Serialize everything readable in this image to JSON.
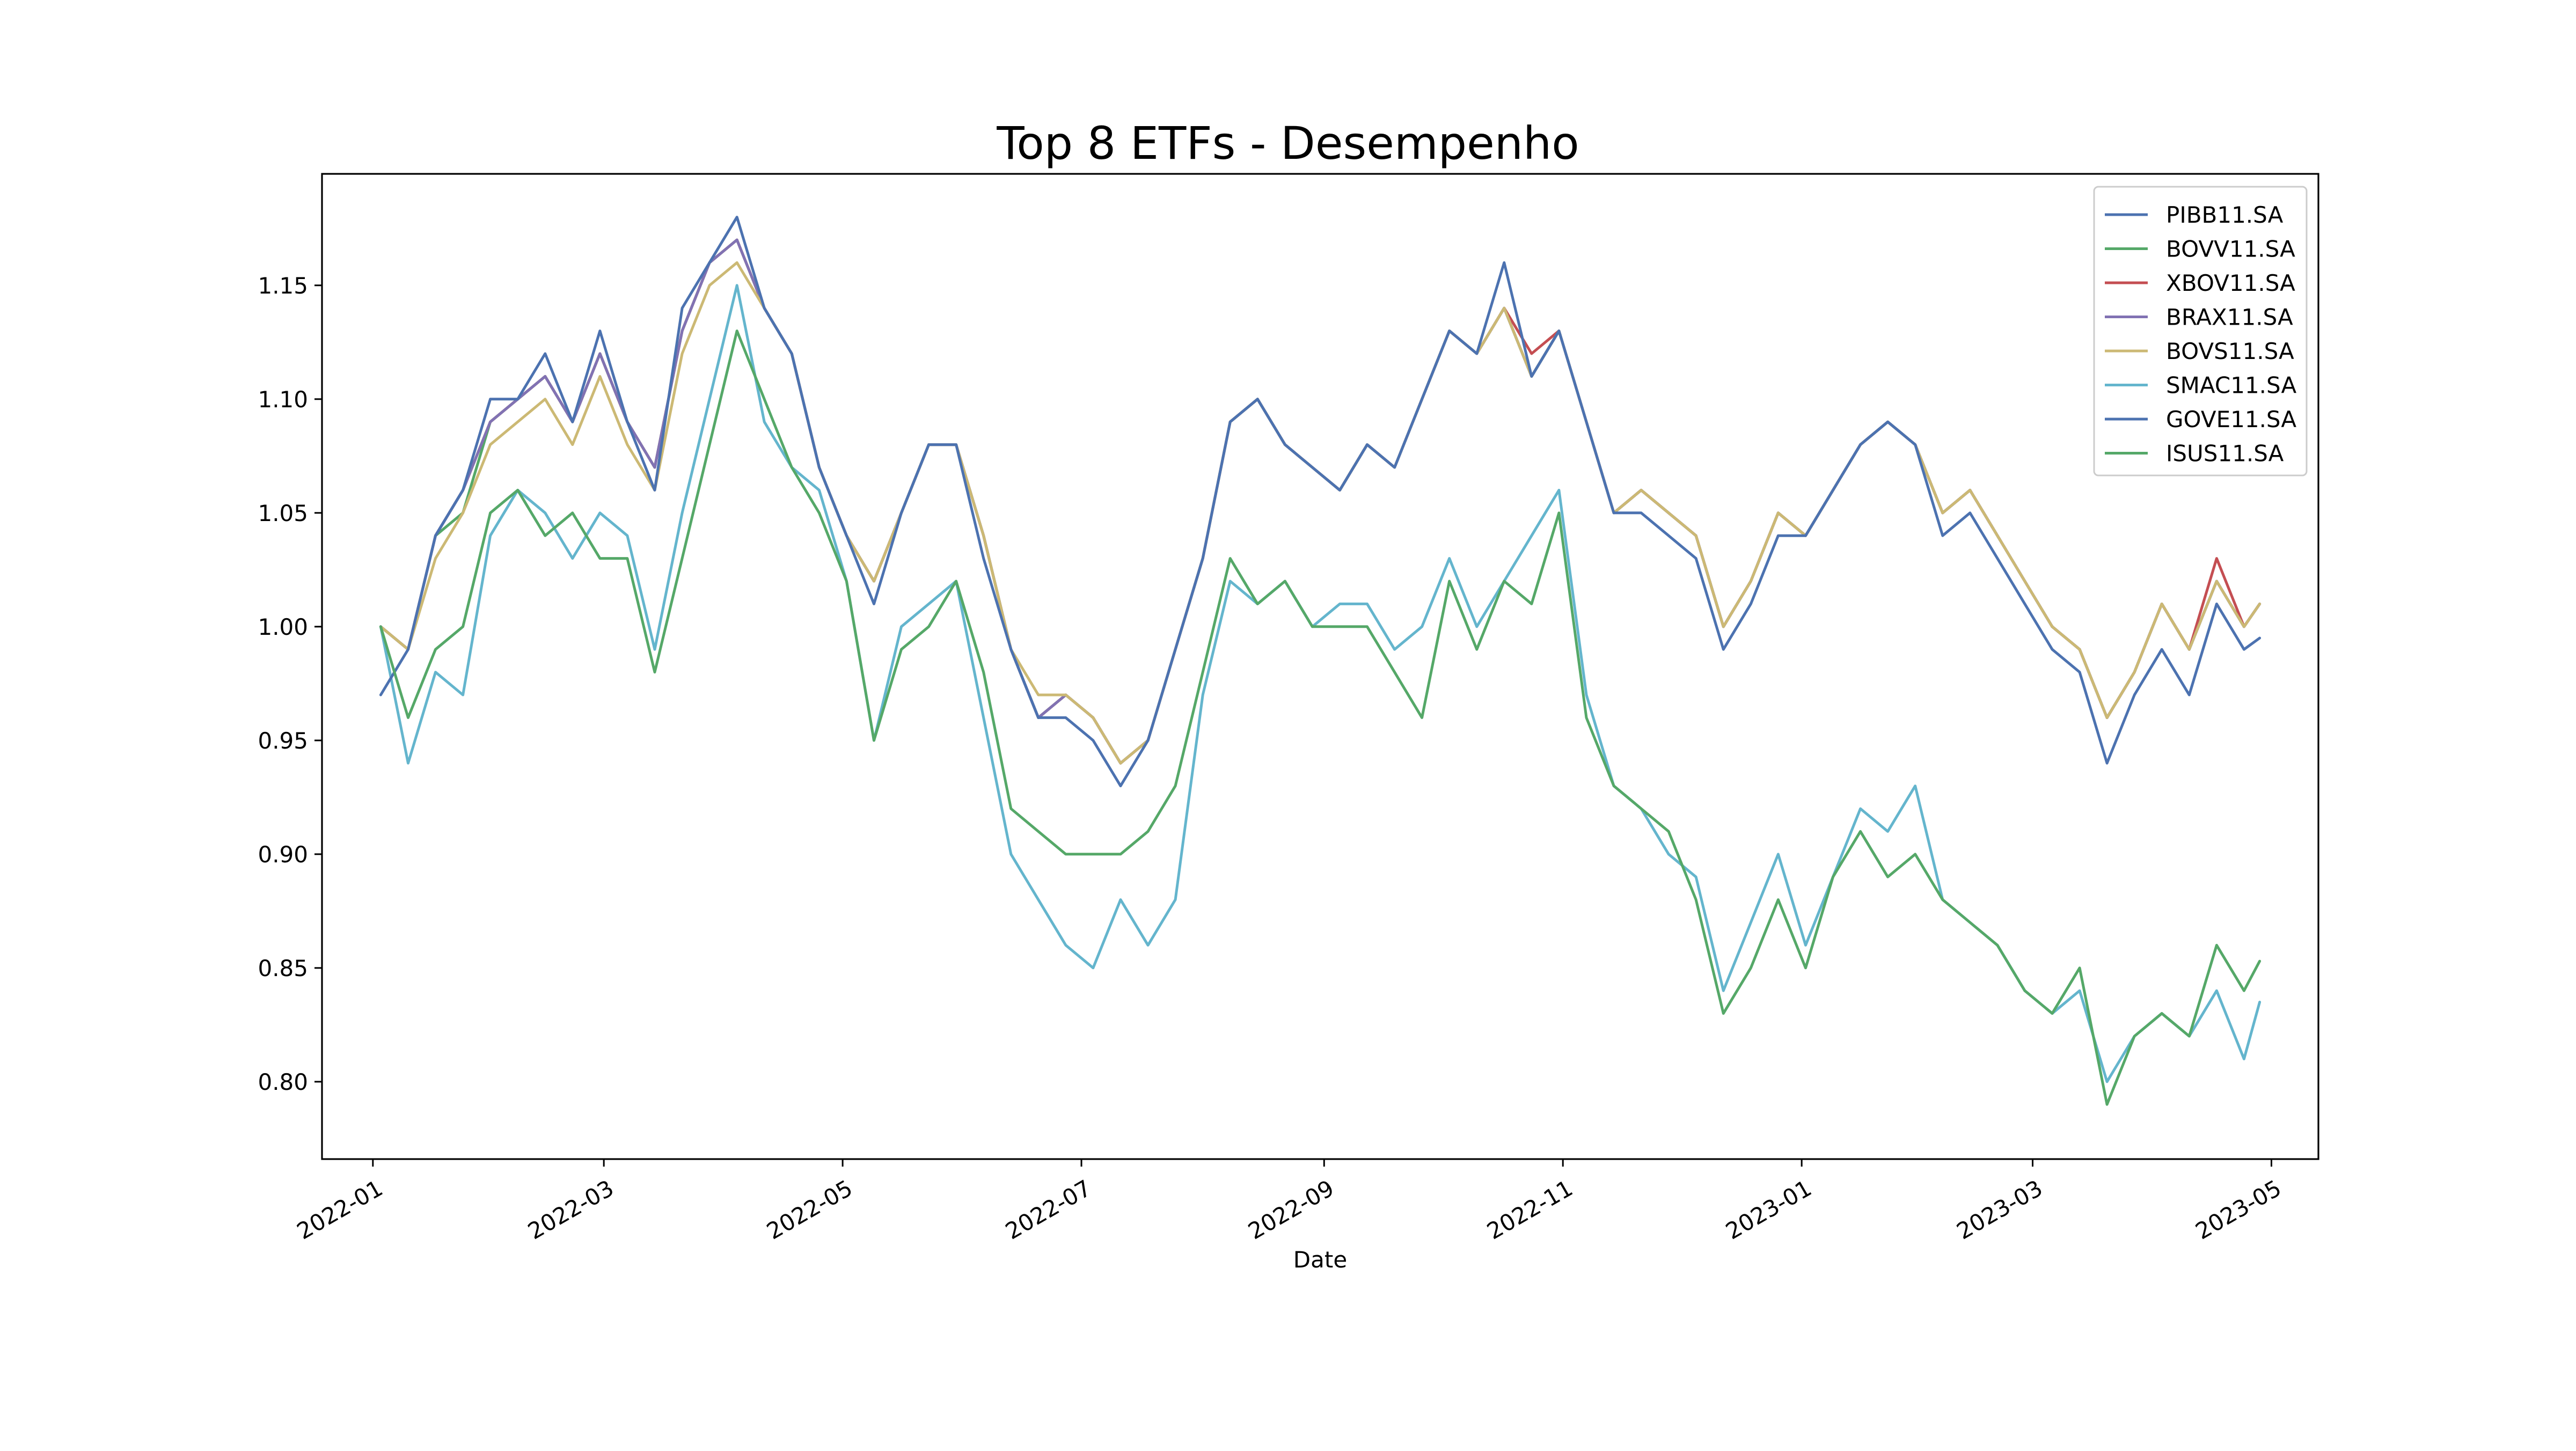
{
  "chart_data": {
    "type": "line",
    "title": "Top 8 ETFs - Desempenho",
    "xlabel": "Date",
    "ylabel": "",
    "xlim": [
      "2021-12-19",
      "2023-05-13"
    ],
    "ylim": [
      0.766,
      1.199
    ],
    "x_ticks": [
      "2022-01-01",
      "2022-03-01",
      "2022-05-01",
      "2022-07-01",
      "2022-09-01",
      "2022-11-01",
      "2023-01-01",
      "2023-03-01",
      "2023-05-01"
    ],
    "x_tick_labels": [
      "2022-01",
      "2022-03",
      "2022-05",
      "2022-07",
      "2022-09",
      "2022-11",
      "2023-01",
      "2023-03",
      "2023-05"
    ],
    "y_ticks": [
      0.8,
      0.85,
      0.9,
      0.95,
      1.0,
      1.05,
      1.1,
      1.15
    ],
    "y_tick_labels": [
      "0.80",
      "0.85",
      "0.90",
      "0.95",
      "1.00",
      "1.05",
      "1.10",
      "1.15"
    ],
    "grid": false,
    "legend_position": "top-right",
    "x": [
      "2022-01-03",
      "2022-01-10",
      "2022-01-17",
      "2022-01-24",
      "2022-01-31",
      "2022-02-07",
      "2022-02-14",
      "2022-02-21",
      "2022-02-28",
      "2022-03-07",
      "2022-03-14",
      "2022-03-21",
      "2022-03-28",
      "2022-04-04",
      "2022-04-11",
      "2022-04-18",
      "2022-04-25",
      "2022-05-02",
      "2022-05-09",
      "2022-05-16",
      "2022-05-23",
      "2022-05-30",
      "2022-06-06",
      "2022-06-13",
      "2022-06-20",
      "2022-06-27",
      "2022-07-04",
      "2022-07-11",
      "2022-07-18",
      "2022-07-25",
      "2022-08-01",
      "2022-08-08",
      "2022-08-15",
      "2022-08-22",
      "2022-08-29",
      "2022-09-05",
      "2022-09-12",
      "2022-09-19",
      "2022-09-26",
      "2022-10-03",
      "2022-10-10",
      "2022-10-17",
      "2022-10-24",
      "2022-10-31",
      "2022-11-07",
      "2022-11-14",
      "2022-11-21",
      "2022-11-28",
      "2022-12-05",
      "2022-12-12",
      "2022-12-19",
      "2022-12-26",
      "2023-01-02",
      "2023-01-09",
      "2023-01-16",
      "2023-01-23",
      "2023-01-30",
      "2023-02-06",
      "2023-02-13",
      "2023-02-20",
      "2023-02-27",
      "2023-03-06",
      "2023-03-13",
      "2023-03-20",
      "2023-03-27",
      "2023-04-03",
      "2023-04-10",
      "2023-04-17",
      "2023-04-24",
      "2023-04-28"
    ],
    "series": [
      {
        "name": "PIBB11.SA",
        "color": "#4c72b0",
        "values": [
          1.0,
          0.99,
          1.04,
          1.06,
          1.09,
          1.1,
          1.11,
          1.09,
          1.12,
          1.09,
          1.07,
          1.13,
          1.16,
          1.17,
          1.14,
          1.12,
          1.07,
          1.04,
          1.02,
          1.05,
          1.08,
          1.08,
          1.04,
          0.99,
          0.96,
          0.97,
          0.96,
          0.94,
          0.95,
          0.99,
          1.03,
          1.09,
          1.1,
          1.08,
          1.07,
          1.06,
          1.08,
          1.07,
          1.1,
          1.13,
          1.12,
          1.14,
          1.11,
          1.13,
          1.09,
          1.05,
          1.06,
          1.05,
          1.04,
          1.0,
          1.02,
          1.05,
          1.04,
          1.06,
          1.08,
          1.09,
          1.08,
          1.05,
          1.06,
          1.04,
          1.02,
          1.0,
          0.99,
          0.96,
          0.98,
          1.01,
          0.99,
          1.02,
          1.0,
          1.01
        ]
      },
      {
        "name": "BOVV11.SA",
        "color": "#55a868",
        "values": [
          1.0,
          0.99,
          1.04,
          1.05,
          1.09,
          1.1,
          1.11,
          1.09,
          1.12,
          1.09,
          1.07,
          1.13,
          1.16,
          1.17,
          1.14,
          1.12,
          1.07,
          1.04,
          1.02,
          1.05,
          1.08,
          1.08,
          1.04,
          0.99,
          0.96,
          0.97,
          0.96,
          0.94,
          0.95,
          0.99,
          1.03,
          1.09,
          1.1,
          1.08,
          1.07,
          1.06,
          1.08,
          1.07,
          1.1,
          1.13,
          1.12,
          1.14,
          1.11,
          1.13,
          1.09,
          1.05,
          1.06,
          1.05,
          1.04,
          1.0,
          1.02,
          1.05,
          1.04,
          1.06,
          1.08,
          1.09,
          1.08,
          1.05,
          1.06,
          1.04,
          1.02,
          1.0,
          0.99,
          0.96,
          0.98,
          1.01,
          0.99,
          1.02,
          1.0,
          1.01
        ]
      },
      {
        "name": "XBOV11.SA",
        "color": "#c44e52",
        "values": [
          1.0,
          0.99,
          1.04,
          1.06,
          1.09,
          1.1,
          1.11,
          1.09,
          1.12,
          1.09,
          1.07,
          1.13,
          1.16,
          1.17,
          1.14,
          1.12,
          1.07,
          1.04,
          1.02,
          1.05,
          1.08,
          1.08,
          1.04,
          0.99,
          0.96,
          0.97,
          0.96,
          0.94,
          0.95,
          0.99,
          1.03,
          1.09,
          1.1,
          1.08,
          1.07,
          1.06,
          1.08,
          1.07,
          1.1,
          1.13,
          1.12,
          1.14,
          1.12,
          1.13,
          1.09,
          1.05,
          1.06,
          1.05,
          1.04,
          1.0,
          1.02,
          1.05,
          1.04,
          1.06,
          1.08,
          1.09,
          1.08,
          1.05,
          1.06,
          1.04,
          1.02,
          1.0,
          0.99,
          0.96,
          0.98,
          1.01,
          0.99,
          1.03,
          1.0,
          1.01
        ]
      },
      {
        "name": "BRAX11.SA",
        "color": "#8172b3",
        "values": [
          1.0,
          0.99,
          1.04,
          1.06,
          1.09,
          1.1,
          1.11,
          1.09,
          1.12,
          1.09,
          1.07,
          1.13,
          1.16,
          1.17,
          1.14,
          1.12,
          1.07,
          1.04,
          1.02,
          1.05,
          1.08,
          1.08,
          1.04,
          0.99,
          0.96,
          0.97,
          0.96,
          0.94,
          0.95,
          0.99,
          1.03,
          1.09,
          1.1,
          1.08,
          1.07,
          1.06,
          1.08,
          1.07,
          1.1,
          1.13,
          1.12,
          1.14,
          1.11,
          1.13,
          1.09,
          1.05,
          1.06,
          1.05,
          1.04,
          1.0,
          1.02,
          1.05,
          1.04,
          1.06,
          1.08,
          1.09,
          1.08,
          1.05,
          1.06,
          1.04,
          1.02,
          1.0,
          0.99,
          0.96,
          0.98,
          1.01,
          0.99,
          1.02,
          1.0,
          1.01
        ]
      },
      {
        "name": "BOVS11.SA",
        "color": "#ccb974",
        "values": [
          1.0,
          0.99,
          1.03,
          1.05,
          1.08,
          1.09,
          1.1,
          1.08,
          1.11,
          1.08,
          1.06,
          1.12,
          1.15,
          1.16,
          1.14,
          1.12,
          1.07,
          1.04,
          1.02,
          1.05,
          1.08,
          1.08,
          1.04,
          0.99,
          0.97,
          0.97,
          0.96,
          0.94,
          0.95,
          0.99,
          1.03,
          1.09,
          1.1,
          1.08,
          1.07,
          1.06,
          1.08,
          1.07,
          1.1,
          1.13,
          1.12,
          1.14,
          1.11,
          1.13,
          1.09,
          1.05,
          1.06,
          1.05,
          1.04,
          1.0,
          1.02,
          1.05,
          1.04,
          1.06,
          1.08,
          1.09,
          1.08,
          1.05,
          1.06,
          1.04,
          1.02,
          1.0,
          0.99,
          0.96,
          0.98,
          1.01,
          0.99,
          1.02,
          1.0,
          1.01
        ]
      },
      {
        "name": "SMAC11.SA",
        "color": "#64b5cd",
        "values": [
          1.0,
          0.94,
          0.98,
          0.97,
          1.04,
          1.06,
          1.05,
          1.03,
          1.05,
          1.04,
          0.99,
          1.05,
          1.1,
          1.15,
          1.09,
          1.07,
          1.06,
          1.02,
          0.95,
          1.0,
          1.01,
          1.02,
          0.96,
          0.9,
          0.88,
          0.86,
          0.85,
          0.88,
          0.86,
          0.88,
          0.97,
          1.02,
          1.01,
          1.02,
          1.0,
          1.01,
          1.01,
          0.99,
          1.0,
          1.03,
          1.0,
          1.02,
          1.04,
          1.06,
          0.97,
          0.93,
          0.92,
          0.9,
          0.89,
          0.84,
          0.87,
          0.9,
          0.86,
          0.89,
          0.92,
          0.91,
          0.93,
          0.88,
          0.87,
          0.86,
          0.84,
          0.83,
          0.84,
          0.8,
          0.82,
          0.83,
          0.82,
          0.84,
          0.81,
          0.835
        ]
      },
      {
        "name": "GOVE11.SA",
        "color": "#4c72b0",
        "values": [
          0.97,
          0.99,
          1.04,
          1.06,
          1.1,
          1.1,
          1.12,
          1.09,
          1.13,
          1.09,
          1.06,
          1.14,
          1.16,
          1.18,
          1.14,
          1.12,
          1.07,
          1.04,
          1.01,
          1.05,
          1.08,
          1.08,
          1.03,
          0.99,
          0.96,
          0.96,
          0.95,
          0.93,
          0.95,
          0.99,
          1.03,
          1.09,
          1.1,
          1.08,
          1.07,
          1.06,
          1.08,
          1.07,
          1.1,
          1.13,
          1.12,
          1.16,
          1.11,
          1.13,
          1.09,
          1.05,
          1.05,
          1.04,
          1.03,
          0.99,
          1.01,
          1.04,
          1.04,
          1.06,
          1.08,
          1.09,
          1.08,
          1.04,
          1.05,
          1.03,
          1.01,
          0.99,
          0.98,
          0.94,
          0.97,
          0.99,
          0.97,
          1.01,
          0.99,
          0.995
        ]
      },
      {
        "name": "ISUS11.SA",
        "color": "#55a868",
        "values": [
          1.0,
          0.96,
          0.99,
          1.0,
          1.05,
          1.06,
          1.04,
          1.05,
          1.03,
          1.03,
          0.98,
          1.03,
          1.08,
          1.13,
          1.1,
          1.07,
          1.05,
          1.02,
          0.95,
          0.99,
          1.0,
          1.02,
          0.98,
          0.92,
          0.91,
          0.9,
          0.9,
          0.9,
          0.91,
          0.93,
          0.98,
          1.03,
          1.01,
          1.02,
          1.0,
          1.0,
          1.0,
          0.98,
          0.96,
          1.02,
          0.99,
          1.02,
          1.01,
          1.05,
          0.96,
          0.93,
          0.92,
          0.91,
          0.88,
          0.83,
          0.85,
          0.88,
          0.85,
          0.89,
          0.91,
          0.89,
          0.9,
          0.88,
          0.87,
          0.86,
          0.84,
          0.83,
          0.85,
          0.79,
          0.82,
          0.83,
          0.82,
          0.86,
          0.84,
          0.853
        ]
      }
    ]
  }
}
